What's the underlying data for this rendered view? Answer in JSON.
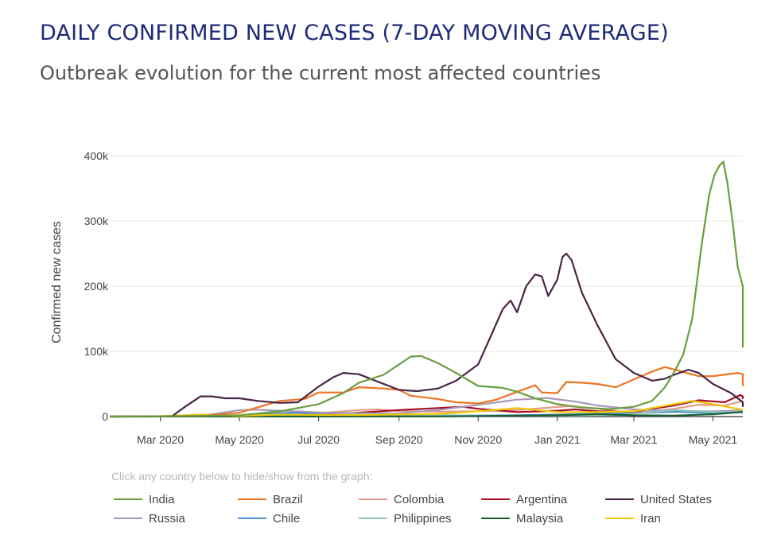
{
  "title": "DAILY CONFIRMED NEW CASES (7-DAY MOVING AVERAGE)",
  "subtitle": "Outbreak evolution for the current most affected countries",
  "legend_hint": "Click any country below to hide/show from the graph:",
  "chart_data": {
    "type": "line",
    "title": "DAILY CONFIRMED NEW CASES (7-DAY MOVING AVERAGE)",
    "subtitle": "Outbreak evolution for the current most affected countries",
    "xlabel": "",
    "ylabel": "Confirmed new cases",
    "x_type": "date",
    "xlim": [
      "2020-01-22",
      "2021-05-24"
    ],
    "ylim": [
      0,
      400000
    ],
    "yticks": [
      0,
      100000,
      200000,
      300000,
      400000
    ],
    "ytick_labels": [
      "0",
      "100k",
      "200k",
      "300k",
      "400k"
    ],
    "xticks": [
      "2020-03-01",
      "2020-05-01",
      "2020-07-01",
      "2020-09-01",
      "2020-11-01",
      "2021-01-01",
      "2021-03-01",
      "2021-05-01"
    ],
    "xtick_labels": [
      "Mar 2020",
      "May 2020",
      "Jul 2020",
      "Sep 2020",
      "Nov 2020",
      "Jan 2021",
      "Mar 2021",
      "May 2021"
    ],
    "grid": "horizontal",
    "legend_position": "bottom",
    "series": [
      {
        "name": "India",
        "color": "#6b9e3f",
        "points": [
          [
            "2020-01-22",
            0
          ],
          [
            "2020-04-01",
            1000
          ],
          [
            "2020-05-01",
            2000
          ],
          [
            "2020-06-01",
            8000
          ],
          [
            "2020-07-01",
            19000
          ],
          [
            "2020-07-20",
            36000
          ],
          [
            "2020-08-01",
            52000
          ],
          [
            "2020-08-20",
            64000
          ],
          [
            "2020-09-01",
            80000
          ],
          [
            "2020-09-10",
            92000
          ],
          [
            "2020-09-18",
            93000
          ],
          [
            "2020-10-01",
            82000
          ],
          [
            "2020-10-15",
            67000
          ],
          [
            "2020-11-01",
            47000
          ],
          [
            "2020-11-20",
            44000
          ],
          [
            "2020-12-01",
            38000
          ],
          [
            "2020-12-15",
            28000
          ],
          [
            "2021-01-01",
            19000
          ],
          [
            "2021-01-20",
            14000
          ],
          [
            "2021-02-10",
            11500
          ],
          [
            "2021-03-01",
            15000
          ],
          [
            "2021-03-15",
            24000
          ],
          [
            "2021-03-25",
            45000
          ],
          [
            "2021-04-01",
            68000
          ],
          [
            "2021-04-08",
            95000
          ],
          [
            "2021-04-15",
            150000
          ],
          [
            "2021-04-22",
            260000
          ],
          [
            "2021-04-28",
            340000
          ],
          [
            "2021-05-02",
            370000
          ],
          [
            "2021-05-06",
            385000
          ],
          [
            "2021-05-09",
            391000
          ],
          [
            "2021-05-12",
            360000
          ],
          [
            "2021-05-16",
            300000
          ],
          [
            "2021-05-20",
            230000
          ],
          [
            "2021-05-24",
            200000
          ],
          [
            "2021-05-28",
            155000
          ],
          [
            "2021-06-02",
            120000
          ],
          [
            "2021-06-05",
            106000
          ]
        ]
      },
      {
        "name": "Brazil",
        "color": "#f07421",
        "points": [
          [
            "2020-01-22",
            0
          ],
          [
            "2020-04-01",
            1000
          ],
          [
            "2020-05-01",
            6000
          ],
          [
            "2020-05-20",
            17000
          ],
          [
            "2020-06-01",
            24000
          ],
          [
            "2020-06-20",
            27000
          ],
          [
            "2020-07-01",
            37000
          ],
          [
            "2020-07-20",
            37000
          ],
          [
            "2020-08-01",
            45000
          ],
          [
            "2020-08-20",
            43000
          ],
          [
            "2020-09-01",
            41000
          ],
          [
            "2020-09-10",
            32000
          ],
          [
            "2020-10-01",
            27000
          ],
          [
            "2020-10-15",
            22000
          ],
          [
            "2020-11-01",
            20000
          ],
          [
            "2020-11-15",
            26000
          ],
          [
            "2020-12-01",
            38000
          ],
          [
            "2020-12-15",
            48000
          ],
          [
            "2020-12-20",
            37000
          ],
          [
            "2021-01-01",
            36000
          ],
          [
            "2021-01-08",
            53000
          ],
          [
            "2021-01-20",
            52000
          ],
          [
            "2021-02-01",
            50000
          ],
          [
            "2021-02-15",
            45000
          ],
          [
            "2021-03-01",
            57000
          ],
          [
            "2021-03-15",
            69000
          ],
          [
            "2021-03-25",
            76000
          ],
          [
            "2021-04-05",
            70000
          ],
          [
            "2021-04-20",
            62000
          ],
          [
            "2021-05-01",
            62000
          ],
          [
            "2021-05-20",
            67000
          ],
          [
            "2021-06-01",
            65000
          ],
          [
            "2021-06-05",
            47000
          ]
        ]
      },
      {
        "name": "Colombia",
        "color": "#e8998d",
        "points": [
          [
            "2020-01-22",
            0
          ],
          [
            "2020-05-01",
            500
          ],
          [
            "2020-06-01",
            1500
          ],
          [
            "2020-07-01",
            5000
          ],
          [
            "2020-08-01",
            10000
          ],
          [
            "2020-08-15",
            11000
          ],
          [
            "2020-09-01",
            8500
          ],
          [
            "2020-10-01",
            7500
          ],
          [
            "2020-11-01",
            8000
          ],
          [
            "2020-12-01",
            10000
          ],
          [
            "2021-01-10",
            16000
          ],
          [
            "2021-02-01",
            12000
          ],
          [
            "2021-03-01",
            5000
          ],
          [
            "2021-04-01",
            12000
          ],
          [
            "2021-04-20",
            18000
          ],
          [
            "2021-05-10",
            17000
          ],
          [
            "2021-06-05",
            24000
          ]
        ]
      },
      {
        "name": "Argentina",
        "color": "#a50f27",
        "points": [
          [
            "2020-01-22",
            0
          ],
          [
            "2020-06-01",
            1000
          ],
          [
            "2020-07-01",
            2500
          ],
          [
            "2020-08-01",
            6000
          ],
          [
            "2020-09-01",
            10000
          ],
          [
            "2020-10-01",
            13000
          ],
          [
            "2020-10-20",
            15000
          ],
          [
            "2020-11-01",
            12000
          ],
          [
            "2020-12-01",
            7000
          ],
          [
            "2021-01-01",
            9000
          ],
          [
            "2021-01-15",
            11000
          ],
          [
            "2021-02-01",
            8000
          ],
          [
            "2021-03-01",
            7500
          ],
          [
            "2021-04-01",
            17000
          ],
          [
            "2021-04-20",
            25000
          ],
          [
            "2021-05-10",
            22000
          ],
          [
            "2021-05-22",
            33000
          ],
          [
            "2021-06-01",
            31000
          ],
          [
            "2021-06-05",
            27000
          ]
        ]
      },
      {
        "name": "United States",
        "color": "#4a2445",
        "points": [
          [
            "2020-01-22",
            0
          ],
          [
            "2020-03-10",
            500
          ],
          [
            "2020-03-20",
            15000
          ],
          [
            "2020-04-01",
            31000
          ],
          [
            "2020-04-10",
            31000
          ],
          [
            "2020-04-20",
            28000
          ],
          [
            "2020-05-01",
            28000
          ],
          [
            "2020-05-15",
            24000
          ],
          [
            "2020-06-01",
            21000
          ],
          [
            "2020-06-15",
            22000
          ],
          [
            "2020-07-01",
            46000
          ],
          [
            "2020-07-12",
            60000
          ],
          [
            "2020-07-20",
            67000
          ],
          [
            "2020-08-01",
            65000
          ],
          [
            "2020-08-15",
            54000
          ],
          [
            "2020-09-01",
            41000
          ],
          [
            "2020-09-15",
            39000
          ],
          [
            "2020-10-01",
            43000
          ],
          [
            "2020-10-15",
            55000
          ],
          [
            "2020-11-01",
            80000
          ],
          [
            "2020-11-10",
            120000
          ],
          [
            "2020-11-20",
            165000
          ],
          [
            "2020-11-26",
            178000
          ],
          [
            "2020-12-01",
            160000
          ],
          [
            "2020-12-08",
            200000
          ],
          [
            "2020-12-15",
            218000
          ],
          [
            "2020-12-20",
            215000
          ],
          [
            "2020-12-25",
            185000
          ],
          [
            "2021-01-01",
            210000
          ],
          [
            "2021-01-05",
            245000
          ],
          [
            "2021-01-08",
            250000
          ],
          [
            "2021-01-12",
            240000
          ],
          [
            "2021-01-20",
            190000
          ],
          [
            "2021-02-01",
            140000
          ],
          [
            "2021-02-15",
            88000
          ],
          [
            "2021-03-01",
            67000
          ],
          [
            "2021-03-15",
            55000
          ],
          [
            "2021-03-25",
            58000
          ],
          [
            "2021-04-01",
            64000
          ],
          [
            "2021-04-12",
            72000
          ],
          [
            "2021-04-20",
            67000
          ],
          [
            "2021-05-01",
            50000
          ],
          [
            "2021-05-15",
            36000
          ],
          [
            "2021-05-25",
            22000
          ],
          [
            "2021-06-05",
            15000
          ]
        ]
      },
      {
        "name": "Russia",
        "color": "#a89bb9",
        "points": [
          [
            "2020-01-22",
            0
          ],
          [
            "2020-04-01",
            1000
          ],
          [
            "2020-05-01",
            10000
          ],
          [
            "2020-05-15",
            10500
          ],
          [
            "2020-06-01",
            9000
          ],
          [
            "2020-07-01",
            6500
          ],
          [
            "2020-08-01",
            5000
          ],
          [
            "2020-09-01",
            5000
          ],
          [
            "2020-10-01",
            10000
          ],
          [
            "2020-11-01",
            18000
          ],
          [
            "2020-12-01",
            26000
          ],
          [
            "2020-12-24",
            28500
          ],
          [
            "2021-01-15",
            23000
          ],
          [
            "2021-02-01",
            17000
          ],
          [
            "2021-03-01",
            11000
          ],
          [
            "2021-04-01",
            8500
          ],
          [
            "2021-05-01",
            8000
          ],
          [
            "2021-06-05",
            9500
          ]
        ]
      },
      {
        "name": "Chile",
        "color": "#4c8ed0",
        "points": [
          [
            "2020-01-22",
            0
          ],
          [
            "2020-05-01",
            1000
          ],
          [
            "2020-06-01",
            5000
          ],
          [
            "2020-06-15",
            6000
          ],
          [
            "2020-07-01",
            3500
          ],
          [
            "2020-08-01",
            2000
          ],
          [
            "2020-10-01",
            1500
          ],
          [
            "2020-12-01",
            2000
          ],
          [
            "2021-01-15",
            3500
          ],
          [
            "2021-03-01",
            5000
          ],
          [
            "2021-04-01",
            7500
          ],
          [
            "2021-05-01",
            5500
          ],
          [
            "2021-06-05",
            6500
          ]
        ]
      },
      {
        "name": "Philippines",
        "color": "#8cc7b8",
        "points": [
          [
            "2020-01-22",
            0
          ],
          [
            "2020-06-01",
            500
          ],
          [
            "2020-08-01",
            3500
          ],
          [
            "2020-09-01",
            3000
          ],
          [
            "2020-11-01",
            1500
          ],
          [
            "2021-01-01",
            1500
          ],
          [
            "2021-02-15",
            2000
          ],
          [
            "2021-03-15",
            7000
          ],
          [
            "2021-04-01",
            10000
          ],
          [
            "2021-05-01",
            7000
          ],
          [
            "2021-06-05",
            6000
          ]
        ]
      },
      {
        "name": "Malaysia",
        "color": "#1a5e35",
        "points": [
          [
            "2020-01-22",
            0
          ],
          [
            "2020-10-01",
            200
          ],
          [
            "2020-11-01",
            800
          ],
          [
            "2021-01-01",
            2000
          ],
          [
            "2021-02-01",
            3800
          ],
          [
            "2021-03-01",
            2000
          ],
          [
            "2021-04-01",
            1500
          ],
          [
            "2021-05-01",
            3500
          ],
          [
            "2021-05-20",
            6500
          ],
          [
            "2021-06-05",
            7500
          ]
        ]
      },
      {
        "name": "Iran",
        "color": "#f0c808",
        "points": [
          [
            "2020-01-22",
            0
          ],
          [
            "2020-03-01",
            500
          ],
          [
            "2020-04-01",
            3000
          ],
          [
            "2020-05-01",
            1000
          ],
          [
            "2020-06-01",
            3000
          ],
          [
            "2020-07-01",
            2500
          ],
          [
            "2020-08-01",
            2500
          ],
          [
            "2020-10-01",
            4000
          ],
          [
            "2020-11-01",
            8000
          ],
          [
            "2020-12-01",
            13000
          ],
          [
            "2021-01-01",
            7000
          ],
          [
            "2021-02-01",
            7000
          ],
          [
            "2021-03-01",
            8000
          ],
          [
            "2021-03-20",
            15000
          ],
          [
            "2021-04-15",
            24000
          ],
          [
            "2021-05-01",
            19000
          ],
          [
            "2021-05-20",
            12000
          ],
          [
            "2021-06-05",
            10000
          ]
        ]
      }
    ]
  }
}
